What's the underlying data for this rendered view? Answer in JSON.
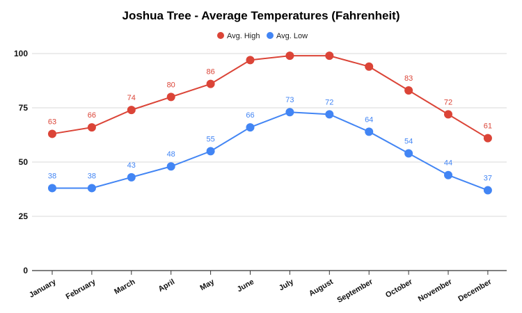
{
  "colors": {
    "high": "#db4437",
    "low": "#4285f4",
    "grid": "#d9d9d9",
    "axis": "#333333"
  },
  "chart_data": {
    "type": "line",
    "title": "Joshua Tree - Average Temperatures (Fahrenheit)",
    "categories": [
      "January",
      "February",
      "March",
      "April",
      "May",
      "June",
      "July",
      "August",
      "September",
      "October",
      "November",
      "December"
    ],
    "series": [
      {
        "name": "Avg. High",
        "color": "#db4437",
        "values": [
          63,
          66,
          74,
          80,
          86,
          97,
          99,
          99,
          94,
          83,
          72,
          61
        ],
        "data_labels": [
          63,
          66,
          74,
          80,
          86,
          null,
          null,
          null,
          null,
          83,
          72,
          61
        ]
      },
      {
        "name": "Avg. Low",
        "color": "#4285f4",
        "values": [
          38,
          38,
          43,
          48,
          55,
          66,
          73,
          72,
          64,
          54,
          44,
          37
        ],
        "data_labels": [
          38,
          38,
          43,
          48,
          55,
          66,
          73,
          72,
          64,
          54,
          44,
          37
        ]
      }
    ],
    "ylim": [
      0,
      100
    ],
    "yticks": [
      0,
      25,
      50,
      75,
      100
    ],
    "grid": true,
    "legend_position": "top"
  }
}
